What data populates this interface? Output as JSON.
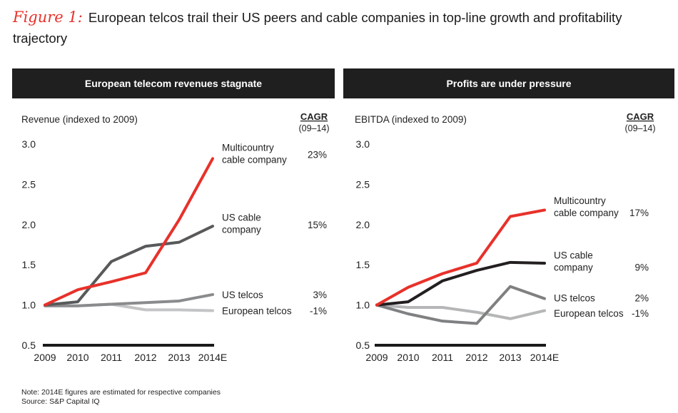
{
  "figure_label": "Figure 1:",
  "title": "European telcos trail their US peers and cable companies in top-line growth and profitability trajectory",
  "footnote": "Note: 2014E figures are estimated for respective companies",
  "source": "Source: S&P Capital IQ",
  "chart_data": [
    {
      "type": "line",
      "title": "European telecom revenues stagnate",
      "ylabel": "Revenue (indexed to 2009)",
      "cagr_title": "CAGR",
      "cagr_period": "(09–14)",
      "x": [
        "2009",
        "2010",
        "2011",
        "2012",
        "2013",
        "2014E"
      ],
      "ylim": [
        0.5,
        3.0
      ],
      "yticks": [
        "0.5",
        "1.0",
        "1.5",
        "2.0",
        "2.5",
        "3.0"
      ],
      "series": [
        {
          "name": "Multicountry cable company",
          "label_lines": [
            "Multicountry",
            "cable company"
          ],
          "cagr": "23%",
          "color": "#e8312a",
          "values": [
            1.0,
            1.19,
            1.29,
            1.4,
            2.06,
            2.82
          ],
          "label_y": 2.96,
          "cagr_y": 2.87
        },
        {
          "name": "US cable company",
          "label_lines": [
            "US cable",
            "company"
          ],
          "cagr": "15%",
          "color": "#58595b",
          "values": [
            1.0,
            1.04,
            1.54,
            1.73,
            1.78,
            1.98
          ],
          "label_y": 2.09,
          "cagr_y": 2.0
        },
        {
          "name": "US telcos",
          "label_lines": [
            "US telcos"
          ],
          "cagr": "3%",
          "color": "#8a8b8d",
          "values": [
            0.99,
            0.99,
            1.01,
            1.03,
            1.05,
            1.13
          ],
          "label_y": 1.13,
          "cagr_y": 1.13
        },
        {
          "name": "European telcos",
          "label_lines": [
            "European telcos"
          ],
          "cagr": "-1%",
          "color": "#c3c4c6",
          "values": [
            0.99,
            0.99,
            1.01,
            0.94,
            0.94,
            0.93
          ],
          "label_y": 0.93,
          "cagr_y": 0.93
        }
      ]
    },
    {
      "type": "line",
      "title": "Profits are under pressure",
      "ylabel": "EBITDA (indexed to 2009)",
      "cagr_title": "CAGR",
      "cagr_period": "(09–14)",
      "x": [
        "2009",
        "2010",
        "2011",
        "2012",
        "2013",
        "2014E"
      ],
      "ylim": [
        0.5,
        3.0
      ],
      "yticks": [
        "0.5",
        "1.0",
        "1.5",
        "2.0",
        "2.5",
        "3.0"
      ],
      "series": [
        {
          "name": "Multicountry cable company",
          "label_lines": [
            "Multicountry",
            "cable company"
          ],
          "cagr": "17%",
          "color": "#e8312a",
          "values": [
            1.0,
            1.22,
            1.39,
            1.52,
            2.1,
            2.18
          ],
          "label_y": 2.3,
          "cagr_y": 2.15
        },
        {
          "name": "US cable company",
          "label_lines": [
            "US cable",
            "company"
          ],
          "cagr": "9%",
          "color": "#231f20",
          "values": [
            1.0,
            1.04,
            1.3,
            1.43,
            1.53,
            1.52
          ],
          "label_y": 1.62,
          "cagr_y": 1.47
        },
        {
          "name": "US telcos",
          "label_lines": [
            "US telcos"
          ],
          "cagr": "2%",
          "color": "#7f8082",
          "values": [
            1.0,
            0.89,
            0.8,
            0.77,
            1.23,
            1.08
          ],
          "label_y": 1.09,
          "cagr_y": 1.09
        },
        {
          "name": "European telcos",
          "label_lines": [
            "European telcos"
          ],
          "cagr": "-1%",
          "color": "#b5b6b8",
          "values": [
            1.0,
            0.97,
            0.97,
            0.91,
            0.83,
            0.93
          ],
          "label_y": 0.9,
          "cagr_y": 0.9
        }
      ]
    }
  ]
}
